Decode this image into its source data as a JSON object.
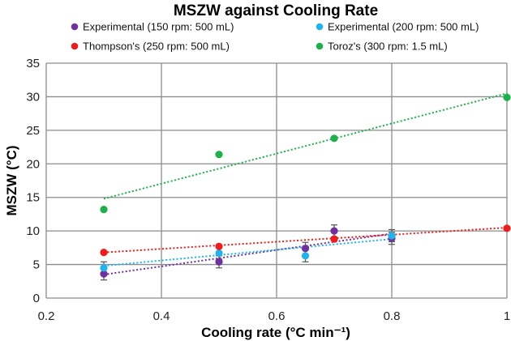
{
  "chart_data": {
    "type": "scatter",
    "title": "MSZW against Cooling Rate",
    "xlabel": "Cooling rate (°C min⁻¹)",
    "ylabel": "MSZW (°C)",
    "xlim": [
      0.2,
      1.0
    ],
    "ylim": [
      0,
      35
    ],
    "x_ticks": [
      "0.2",
      "0.4",
      "0.6",
      "0.8",
      "1"
    ],
    "y_ticks": [
      "0",
      "5",
      "10",
      "15",
      "20",
      "25",
      "30",
      "35"
    ],
    "grid": "vertical and horizontal major gridlines",
    "legend_position": "top",
    "series": [
      {
        "name": "Experimental (150 rpm: 500 mL)",
        "color": "#7030a0",
        "points": [
          {
            "x": 0.3,
            "y": 3.6,
            "err": 0.9
          },
          {
            "x": 0.5,
            "y": 5.4,
            "err": 0.9
          },
          {
            "x": 0.65,
            "y": 7.4,
            "err": 0.9
          },
          {
            "x": 0.7,
            "y": 10.0,
            "err": 0.9
          },
          {
            "x": 0.8,
            "y": 8.9,
            "err": 0.9
          }
        ],
        "trendline": [
          [
            0.3,
            3.5
          ],
          [
            0.8,
            9.6
          ]
        ]
      },
      {
        "name": "Experimental (200 rpm: 500 mL)",
        "color": "#1fb4f0",
        "points": [
          {
            "x": 0.3,
            "y": 4.5,
            "err": 0.9
          },
          {
            "x": 0.5,
            "y": 6.7,
            "err": 0.9
          },
          {
            "x": 0.65,
            "y": 6.3,
            "err": 0.9
          },
          {
            "x": 0.8,
            "y": 9.3,
            "err": 0.9
          }
        ],
        "trendline": [
          [
            0.3,
            4.8
          ],
          [
            0.8,
            8.8
          ]
        ]
      },
      {
        "name": "Thompson's (250 rpm: 500 mL)",
        "color": "#ee1c1c",
        "points": [
          {
            "x": 0.3,
            "y": 6.8
          },
          {
            "x": 0.5,
            "y": 7.7
          },
          {
            "x": 0.7,
            "y": 8.8
          },
          {
            "x": 1.0,
            "y": 10.4
          }
        ],
        "trendline": [
          [
            0.3,
            6.8
          ],
          [
            1.0,
            10.5
          ]
        ]
      },
      {
        "name": "Toroz's (300 rpm: 1.5 mL)",
        "color": "#1eb04a",
        "points": [
          {
            "x": 0.3,
            "y": 13.2
          },
          {
            "x": 0.5,
            "y": 21.4
          },
          {
            "x": 0.7,
            "y": 23.8
          },
          {
            "x": 1.0,
            "y": 29.9
          }
        ],
        "trendline": [
          [
            0.3,
            14.8
          ],
          [
            1.0,
            30.5
          ]
        ]
      }
    ]
  }
}
